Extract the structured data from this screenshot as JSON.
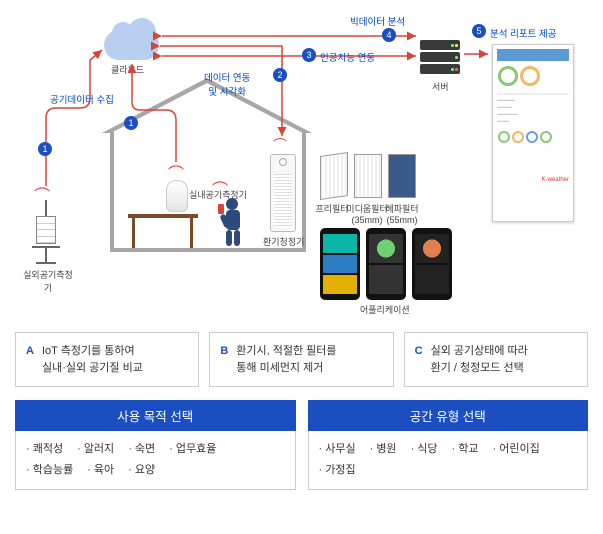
{
  "labels": {
    "cloud": "클라우드",
    "outdoor_sensor": "실외공기측정기",
    "indoor_sensor": "실내공기측정기",
    "air_purifier": "환기청정기",
    "server": "서버",
    "app": "어플리케이션",
    "filter_pre": "프리필터",
    "filter_med": "미디움필터\n(35mm)",
    "filter_hepa": "헤파필터\n(55mm)"
  },
  "flows": {
    "f1": "공기데이터 수집",
    "f2": "데이터 연동\n및 시각화",
    "f3": "인공지능 연동",
    "f4": "빅데이터 분석",
    "f5": "분석 리포트 제공"
  },
  "nums": {
    "n1": "1",
    "n1b": "1",
    "n2": "2",
    "n3": "3",
    "n4": "4",
    "n5": "5"
  },
  "abc": {
    "a_l": "A",
    "a": "IoT 측정기를 통하여\n실내·실외 공기질 비교",
    "b_l": "B",
    "b": "환기시, 적절한 필터를\n통해 미세먼지 제거",
    "c_l": "C",
    "c": "실외 공기상태에 따라\n환기 / 청정모드 선택"
  },
  "blue": {
    "h1": "사용 목적 선택",
    "h2": "공간 유형 선택",
    "c1": [
      "쾌적성",
      "알러지",
      "숙면",
      "업무효율",
      "학습능률",
      "육아",
      "요양"
    ],
    "c2": [
      "사무실",
      "병원",
      "식당",
      "학교",
      "어린이집",
      "가정집"
    ]
  },
  "colors": {
    "accent": "#1b4fc1"
  }
}
